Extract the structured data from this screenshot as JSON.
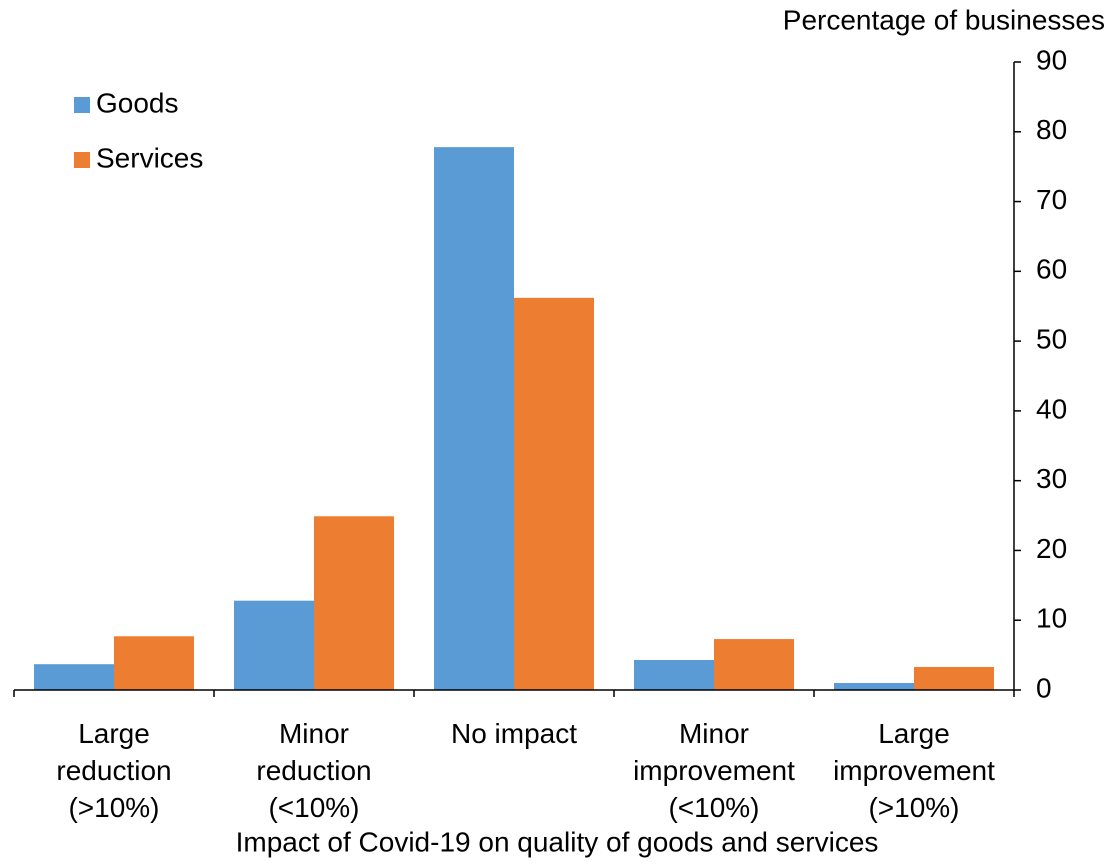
{
  "chart_data": {
    "type": "bar",
    "y_label": "Percentage of businesses",
    "x_label": "Impact of Covid-19 on quality of goods and services",
    "categories": [
      "Large\nreduction\n(>10%)",
      "Minor\nreduction\n(<10%)",
      "No impact",
      "Minor\nimprovement\n(<10%)",
      "Large\nimprovement\n(>10%)"
    ],
    "series": [
      {
        "name": "Goods",
        "color": "#5b9bd5",
        "values": [
          3.7,
          12.8,
          77.8,
          4.3,
          1.0
        ]
      },
      {
        "name": "Services",
        "color": "#ed7d31",
        "values": [
          7.7,
          24.9,
          56.2,
          7.3,
          3.3
        ]
      }
    ],
    "ylim": [
      0,
      90
    ],
    "yticks": [
      0,
      10,
      20,
      30,
      40,
      50,
      60,
      70,
      80,
      90
    ],
    "y_axis_side": "right",
    "legend": "upper left",
    "grid": false
  }
}
